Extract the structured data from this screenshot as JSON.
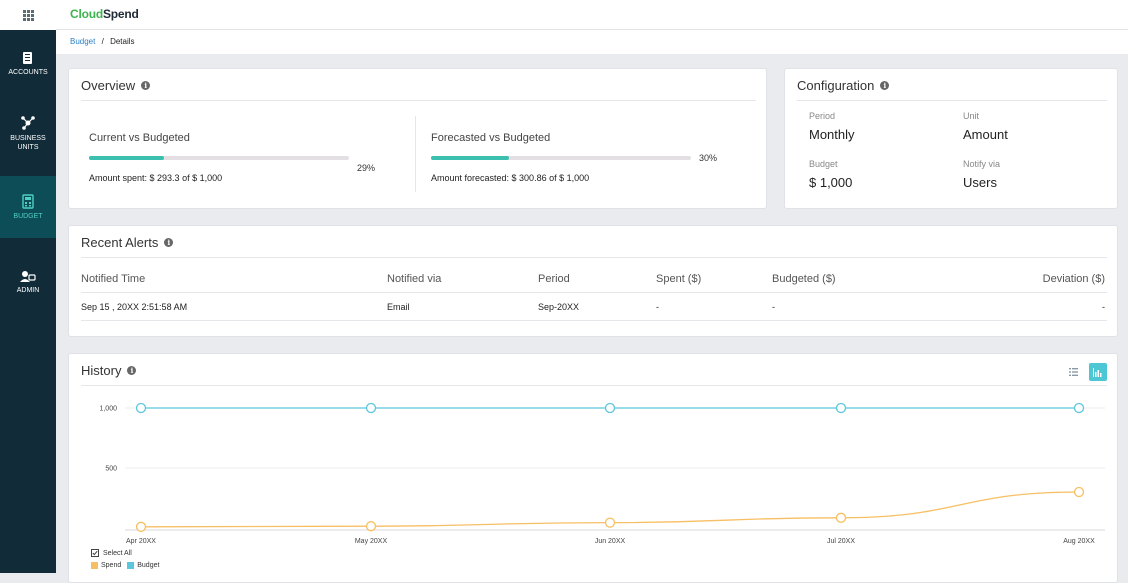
{
  "app": {
    "logo_part1": "Cloud",
    "logo_part2": "Spend"
  },
  "sidebar": {
    "items": [
      {
        "label": "ACCOUNTS"
      },
      {
        "label_line1": "BUSINESS",
        "label_line2": "UNITS"
      },
      {
        "label": "BUDGET",
        "active": true
      },
      {
        "label": "ADMIN"
      }
    ]
  },
  "breadcrumb": {
    "parent": "Budget",
    "separator": "/",
    "current": "Details"
  },
  "overview": {
    "title": "Overview",
    "current": {
      "label": "Current vs Budgeted",
      "percent_text": "29%",
      "progress": 0.29,
      "amount_text": "Amount spent: $ 293.3 of $ 1,000"
    },
    "forecast": {
      "label": "Forecasted vs Budgeted",
      "percent_text": "30%",
      "progress": 0.3,
      "amount_text": "Amount forecasted: $ 300.86 of $ 1,000"
    }
  },
  "configuration": {
    "title": "Configuration",
    "period_label": "Period",
    "period_value": "Monthly",
    "unit_label": "Unit",
    "unit_value": "Amount",
    "budget_label": "Budget",
    "budget_value": "$ 1,000",
    "notify_label": "Notify via",
    "notify_value": "Users"
  },
  "alerts": {
    "title": "Recent Alerts",
    "columns": [
      "Notified Time",
      "Notified via",
      "Period",
      "Spent ($)",
      "Budgeted ($)",
      "Deviation ($)"
    ],
    "rows": [
      [
        "Sep 15 , 20XX 2:51:58 AM",
        "Email",
        "Sep-20XX",
        "-",
        "-",
        "-"
      ]
    ]
  },
  "history": {
    "title": "History",
    "select_all": "Select All",
    "legend": {
      "spend": "Spend",
      "budget": "Budget"
    }
  },
  "colors": {
    "accent": "#3bbfae",
    "spend": "#f7bf63",
    "budget": "#5bc6dc",
    "sidebar": "#112b38"
  },
  "chart_data": {
    "type": "line",
    "categories": [
      "Apr 20XX",
      "May 20XX",
      "Jun 20XX",
      "Jul 20XX",
      "Aug 20XX"
    ],
    "series": [
      {
        "name": "Spend",
        "values": [
          10,
          15,
          45,
          85,
          300
        ]
      },
      {
        "name": "Budget",
        "values": [
          1000,
          1000,
          1000,
          1000,
          1000
        ]
      }
    ],
    "yticks": [
      "1,000",
      "500"
    ],
    "ylim": [
      0,
      1000
    ]
  }
}
